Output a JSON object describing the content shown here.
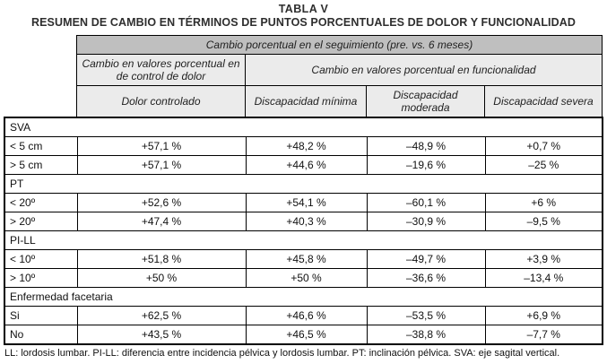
{
  "title": "TABLA V",
  "subtitle": "RESUMEN DE CAMBIO EN TÉRMINOS DE PUNTOS PORCENTUALES DE DOLOR Y FUNCIONALIDAD",
  "colors": {
    "header_dark": "#bfbfbf",
    "header_light": "#ebebeb",
    "border": "#000000",
    "text": "#1a1a1a"
  },
  "header": {
    "top": "Cambio porcentual en el seguimiento (pre. vs. 6 meses)",
    "group_pain": "Cambio en valores porcentual en de control de dolor",
    "group_function": "Cambio en valores porcentual en funcionalidad",
    "columns": [
      "Dolor controlado",
      "Discapacidad mínima",
      "Discapacidad moderada",
      "Discapacidad severa"
    ]
  },
  "sections": [
    {
      "label": "SVA",
      "rows": [
        {
          "label": "< 5 cm",
          "values": [
            "+57,1 %",
            "+48,2 %",
            "–48,9 %",
            "+0,7 %"
          ]
        },
        {
          "label": "> 5 cm",
          "values": [
            "+57,1 %",
            "+44,6 %",
            "–19,6 %",
            "–25 %"
          ]
        }
      ]
    },
    {
      "label": "PT",
      "rows": [
        {
          "label": "< 20º",
          "values": [
            "+52,6 %",
            "+54,1 %",
            "–60,1 %",
            "+6 %"
          ]
        },
        {
          "label": "> 20º",
          "values": [
            "+47,4 %",
            "+40,3 %",
            "–30,9 %",
            "–9,5 %"
          ]
        }
      ]
    },
    {
      "label": "PI-LL",
      "rows": [
        {
          "label": "< 10º",
          "values": [
            "+51,8 %",
            "+45,8 %",
            "–49,7 %",
            "+3,9 %"
          ]
        },
        {
          "label": "> 10º",
          "values": [
            "+50 %",
            "+50 %",
            "–36,6 %",
            "–13,4 %"
          ]
        }
      ]
    },
    {
      "label": "Enfermedad facetaria",
      "rows": [
        {
          "label": "Si",
          "values": [
            "+62,5 %",
            "+46,6 %",
            "–53,5 %",
            "+6,9 %"
          ]
        },
        {
          "label": "No",
          "values": [
            "+43,5 %",
            "+46,5 %",
            "–38,8 %",
            "–7,7 %"
          ]
        }
      ]
    }
  ],
  "footnote": "LL: lordosis lumbar. PI-LL: diferencia entre incidencia pélvica y lordosis lumbar. PT: inclinación pélvica. SVA: eje sagital vertical."
}
